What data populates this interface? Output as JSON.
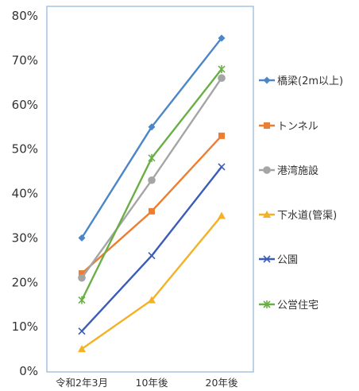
{
  "chart_data": {
    "type": "line",
    "categories": [
      "令和2年3月",
      "10年後",
      "20年後"
    ],
    "ylim": [
      0,
      80
    ],
    "yticks": [
      0,
      10,
      20,
      30,
      40,
      50,
      60,
      70,
      80
    ],
    "ytick_format": "%",
    "grid": false,
    "legend_position": "right",
    "title": "",
    "xlabel": "",
    "ylabel": "",
    "series": [
      {
        "name": "橋梁(2m以上)",
        "values": [
          30,
          55,
          75
        ],
        "color": "#4a86c8",
        "marker": "diamond"
      },
      {
        "name": "トンネル",
        "values": [
          22,
          36,
          53
        ],
        "color": "#ed7d31",
        "marker": "square"
      },
      {
        "name": "港湾施設",
        "values": [
          21,
          43,
          66
        ],
        "color": "#a5a5a5",
        "marker": "circle"
      },
      {
        "name": "下水道(管渠)",
        "values": [
          5,
          16,
          35
        ],
        "color": "#f5b125",
        "marker": "triangle"
      },
      {
        "name": "公園",
        "values": [
          9,
          26,
          46
        ],
        "color": "#3b5cb8",
        "marker": "x"
      },
      {
        "name": "公営住宅",
        "values": [
          16,
          48,
          68
        ],
        "color": "#6aaf46",
        "marker": "star"
      }
    ]
  }
}
